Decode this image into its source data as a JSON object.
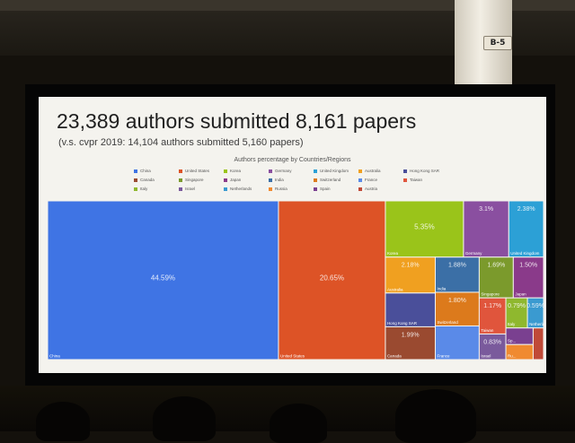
{
  "pillar_sign": "B-5",
  "slide": {
    "headline": "23,389 authors submitted 8,161 papers",
    "subline": "(v.s. cvpr 2019: 14,104 authors submitted 5,160 papers)"
  },
  "chart_data": {
    "type": "treemap",
    "title": "Authors percentage by Countries/Regions",
    "legend": [
      {
        "name": "China",
        "color": "#3f74e4"
      },
      {
        "name": "United States",
        "color": "#dd5326"
      },
      {
        "name": "Korea",
        "color": "#9ac41a"
      },
      {
        "name": "Germany",
        "color": "#8a4fa0"
      },
      {
        "name": "United Kingdom",
        "color": "#2ca0d6"
      },
      {
        "name": "Australia",
        "color": "#f0a020"
      },
      {
        "name": "Hong Kong SAR",
        "color": "#4a4f9a"
      },
      {
        "name": "Canada",
        "color": "#9a4a30"
      },
      {
        "name": "Singapore",
        "color": "#7b9a2c"
      },
      {
        "name": "Japan",
        "color": "#8a3a8a"
      },
      {
        "name": "India",
        "color": "#3b6fa6"
      },
      {
        "name": "Switzerland",
        "color": "#dc7a1c"
      },
      {
        "name": "France",
        "color": "#5a8ae8"
      },
      {
        "name": "Taiwan",
        "color": "#e0553c"
      },
      {
        "name": "Italy",
        "color": "#8fb82e"
      },
      {
        "name": "Israel",
        "color": "#7a5a9c"
      },
      {
        "name": "Netherlands",
        "color": "#3a9ad0"
      },
      {
        "name": "Russia",
        "color": "#f08a30"
      },
      {
        "name": "Spain",
        "color": "#7a4090"
      },
      {
        "name": "Austria",
        "color": "#c04a38"
      }
    ],
    "cells": [
      {
        "name": "China",
        "value": 44.59,
        "value_label": "44.59%",
        "color": "#3f74e4"
      },
      {
        "name": "United States",
        "value": 20.65,
        "value_label": "20.65%",
        "color": "#dd5326"
      },
      {
        "name": "Korea",
        "value": 5.35,
        "value_label": "5.35%",
        "color": "#9ac41a"
      },
      {
        "name": "Germany",
        "value": 3.1,
        "value_label": "3.1%",
        "color": "#8a4fa0"
      },
      {
        "name": "United Kingdom",
        "value": 2.38,
        "value_label": "2.38%",
        "color": "#2ca0d6"
      },
      {
        "name": "Australia",
        "value": 2.18,
        "value_label": "2.18%",
        "color": "#f0a020"
      },
      {
        "name": "Hong Kong SAR",
        "value": 2.05,
        "value_label": "",
        "color": "#4a4f9a"
      },
      {
        "name": "Canada",
        "value": 1.99,
        "value_label": "1.99%",
        "color": "#9a4a30"
      },
      {
        "name": "India",
        "value": 1.88,
        "value_label": "1.88%",
        "color": "#3b6fa6"
      },
      {
        "name": "Switzerland",
        "value": 1.8,
        "value_label": "1.80%",
        "color": "#dc7a1c"
      },
      {
        "name": "France",
        "value": 1.8,
        "value_label": "",
        "color": "#5a8ae8"
      },
      {
        "name": "Singapore",
        "value": 1.69,
        "value_label": "1.69%",
        "color": "#7b9a2c"
      },
      {
        "name": "Japan",
        "value": 1.5,
        "value_label": "1.50%",
        "color": "#8a3a8a"
      },
      {
        "name": "Taiwan",
        "value": 1.17,
        "value_label": "1.17%",
        "color": "#e0553c"
      },
      {
        "name": "Israel",
        "value": 0.83,
        "value_label": "0.83%",
        "color": "#7a5a9c"
      },
      {
        "name": "Netherlands",
        "value": 0.59,
        "value_label": "0.59%",
        "color": "#3a9ad0"
      },
      {
        "name": "Italy",
        "value": 0.79,
        "value_label": "0.79%",
        "color": "#8fb82e"
      },
      {
        "name": "Spain",
        "value": 0.55,
        "value_label": "",
        "color": "#7a4090"
      },
      {
        "name": "Russia",
        "value": 0.5,
        "value_label": "",
        "color": "#f08a30"
      },
      {
        "name": "Austria",
        "value": 0.4,
        "value_label": "",
        "color": "#c04a38"
      }
    ],
    "cell_labels": {
      "China": "China",
      "United States": "United States",
      "Korea": "Korea",
      "Germany": "Germany",
      "United Kingdom": "United Kingdom",
      "Australia": "Australia",
      "Hong Kong SAR": "Hong Kong SAR",
      "Canada": "Canada",
      "India": "India",
      "Switzerland": "Switzerland",
      "France": "France",
      "Singapore": "Singapore",
      "Japan": "Japan",
      "Taiwan": "Taiwan",
      "Israel": "Israel",
      "Netherlands": "Netherla...",
      "Italy": "Italy",
      "Spain": "Sp...",
      "Russia": "Ru...",
      "Austria": "Au..."
    }
  }
}
